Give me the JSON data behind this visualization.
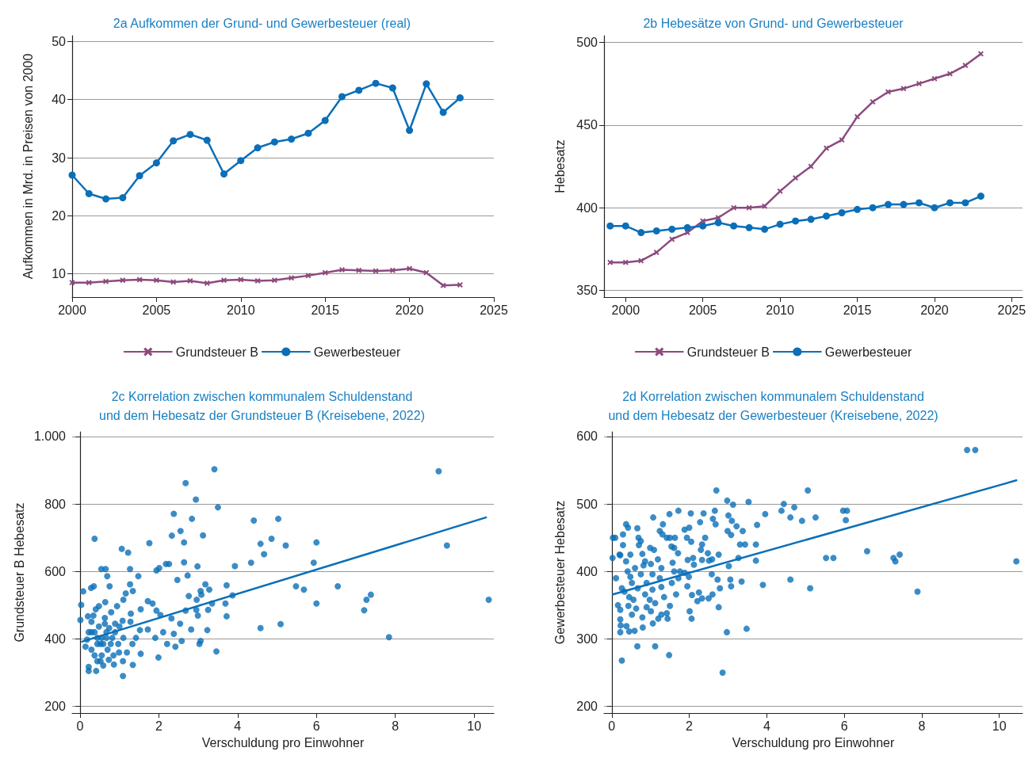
{
  "chart_data": [
    {
      "type": "line",
      "title": "2a Aufkommen der Grund- und Gewerbesteuer (real)",
      "ylabel": "Aufkommen in Mrd. in Preisen von 2000",
      "x": [
        2000,
        2001,
        2002,
        2003,
        2004,
        2005,
        2006,
        2007,
        2008,
        2009,
        2010,
        2011,
        2012,
        2013,
        2014,
        2015,
        2016,
        2017,
        2018,
        2019,
        2020,
        2021,
        2022,
        2023
      ],
      "xlim": [
        2000,
        2025
      ],
      "xticks": [
        2000,
        2005,
        2010,
        2015,
        2020,
        2025
      ],
      "ylim": [
        6,
        51
      ],
      "yticks": [
        10,
        20,
        30,
        40,
        50
      ],
      "grid": "y",
      "legend": "bottom",
      "series": [
        {
          "name": "Grundsteuer B",
          "color": "#8c4a7e",
          "marker": "cross",
          "values": [
            8.5,
            8.5,
            8.7,
            8.9,
            9.0,
            8.9,
            8.6,
            8.8,
            8.4,
            8.9,
            9.0,
            8.8,
            8.9,
            9.3,
            9.7,
            10.2,
            10.7,
            10.6,
            10.5,
            10.6,
            10.9,
            10.2,
            8.0,
            8.1
          ]
        },
        {
          "name": "Gewerbesteuer",
          "color": "#0a6fb8",
          "marker": "circle",
          "values": [
            27.0,
            23.8,
            22.9,
            23.1,
            26.9,
            29.1,
            32.9,
            34.0,
            33.0,
            27.2,
            29.5,
            31.7,
            32.7,
            33.2,
            34.2,
            36.4,
            40.5,
            41.6,
            42.8,
            42.0,
            34.7,
            42.7,
            37.8,
            40.3
          ]
        }
      ]
    },
    {
      "type": "line",
      "title": "2b Hebesätze von Grund- und Gewerbesteuer",
      "ylabel": "Hebesatz",
      "x": [
        1999,
        2000,
        2001,
        2002,
        2003,
        2004,
        2005,
        2006,
        2007,
        2008,
        2009,
        2010,
        2011,
        2012,
        2013,
        2014,
        2015,
        2016,
        2017,
        2018,
        2019,
        2020,
        2021,
        2022,
        2023
      ],
      "xlim": [
        1998.6,
        2025.7
      ],
      "xticks": [
        2000,
        2005,
        2010,
        2015,
        2020,
        2025
      ],
      "ylim": [
        346,
        504
      ],
      "yticks": [
        350,
        400,
        450,
        500
      ],
      "grid": "y",
      "legend": "bottom",
      "series": [
        {
          "name": "Grundsteuer B",
          "color": "#8c4a7e",
          "marker": "cross",
          "values": [
            367,
            367,
            368,
            373,
            381,
            385,
            392,
            394,
            400,
            400,
            401,
            410,
            418,
            425,
            436,
            441,
            455,
            464,
            470,
            472,
            475,
            478,
            481,
            486,
            493
          ]
        },
        {
          "name": "Gewerbesteuer",
          "color": "#0a6fb8",
          "marker": "circle",
          "values": [
            389,
            389,
            385,
            386,
            387,
            388,
            389,
            391,
            389,
            388,
            387,
            390,
            392,
            393,
            395,
            397,
            399,
            400,
            402,
            402,
            403,
            400,
            403,
            403,
            407
          ]
        }
      ]
    },
    {
      "type": "scatter",
      "title": "2c Korrelation zwischen kommunalem Schuldenstand\nund dem Hebesatz der Grundsteuer B (Kreisebene, 2022)",
      "xlabel": "Verschuldung pro Einwohner",
      "ylabel": "Grundsteuer B Hebesatz",
      "xlim": [
        -0.2,
        10.5
      ],
      "xticks": [
        0,
        2,
        4,
        6,
        8,
        10
      ],
      "ylim": [
        180,
        1014
      ],
      "yticks": [
        200,
        400,
        600,
        800,
        {
          "value": 1000,
          "label": "1.000"
        }
      ],
      "grid": "y",
      "marker": "circle",
      "series": [
        {
          "color": "#0a6fb8",
          "x": [
            3.41,
            2.68,
            2.94,
            3.5,
            2.38,
            2.84,
            4.41,
            5.03,
            9.1,
            9.31,
            10.37,
            7.84,
            7.21,
            7.27,
            7.38,
            6.54,
            6.0,
            6.0,
            5.93,
            5.48,
            5.68,
            5.22,
            4.86,
            4.58,
            4.67,
            4.34,
            4.58,
            5.09,
            3.93,
            3.87,
            3.69,
            3.72,
            3.72,
            3.46,
            3.28,
            3.18,
            3.08,
            3.06,
            3.35,
            3.25,
            3.23,
            3.12,
            2.98,
            2.73,
            2.64,
            2.55,
            2.33,
            2.64,
            1.76,
            1.06,
            1.22,
            0.37,
            0.54,
            0.65,
            1.27,
            1.94,
            2.01,
            2.18,
            2.26,
            1.48,
            0.69,
            0.75,
            0.35,
            0.28,
            0.08,
            0.03,
            0.01,
            0.2,
            0.34,
            1.09,
            0.41,
            0.22,
            0.22,
            1.99,
            3.03,
            3.06,
            2.82,
            2.47,
            2.76,
            2.96,
            2.99,
            2.95,
            2.68,
            2.54,
            2.58,
            2.42,
            2.21,
            2.38,
            2.32,
            2.04,
            1.94,
            1.84,
            1.72,
            1.54,
            1.34,
            1.27,
            1.16,
            1.1,
            0.94,
            1.29,
            1.28,
            1.52,
            1.72,
            1.91,
            2.11,
            1.42,
            1.33,
            1.19,
            1.34,
            1.54,
            1.09,
            0.86,
            0.59,
            0.52,
            0.37,
            0.29,
            0.14,
            0.18,
            0.29,
            0.48,
            0.63,
            0.74,
            0.89,
            1.0,
            1.08,
            0.79,
            0.64,
            0.48,
            0.4,
            0.29,
            0.44,
            0.59,
            0.67,
            0.82,
            0.97,
            0.7,
            0.85,
            0.55,
            0.44,
            0.73,
            0.99,
            1.1,
            0.37,
            0.22,
            0.67,
            0.89,
            0.63,
            0.52,
            0.78,
            0.55,
            0.44
          ],
          "values": [
            903,
            862,
            813,
            790,
            771,
            756,
            751,
            756,
            897,
            677,
            516,
            405,
            485,
            516,
            531,
            556,
            505,
            686,
            626,
            556,
            546,
            677,
            697,
            682,
            651,
            626,
            432,
            444,
            616,
            529,
            505,
            559,
            467,
            363,
            546,
            562,
            531,
            542,
            505,
            486,
            426,
            707,
            615,
            588,
            686,
            720,
            706,
            627,
            684,
            667,
            656,
            697,
            607,
            607,
            607,
            603,
            610,
            622,
            622,
            586,
            586,
            556,
            556,
            551,
            541,
            501,
            456,
            467,
            469,
            290,
            305,
            305,
            317,
            345,
            385,
            394,
            428,
            575,
            527,
            516,
            469,
            486,
            484,
            445,
            394,
            377,
            385,
            415,
            461,
            471,
            484,
            505,
            512,
            488,
            542,
            562,
            535,
            516,
            497,
            475,
            451,
            426,
            428,
            403,
            420,
            403,
            385,
            360,
            323,
            356,
            334,
            324,
            321,
            334,
            351,
            368,
            377,
            398,
            420,
            437,
            445,
            432,
            445,
            437,
            454,
            479,
            509,
            497,
            488,
            451,
            385,
            385,
            403,
            403,
            385,
            368,
            351,
            351,
            334,
            338,
            360,
            403,
            420,
            420,
            420,
            420,
            462,
            385,
            385,
            403,
            403
          ]
        },
        {
          "type": "line",
          "color": "#0a6fb8",
          "marker": "none",
          "x": [
            0.05,
            10.3
          ],
          "values": [
            392,
            760
          ]
        }
      ]
    },
    {
      "type": "scatter",
      "title": "2d Korrelation zwischen kommunalem Schuldenstand\nund dem Hebesatz der Gewerbesteuer (Kreisebene, 2022)",
      "xlabel": "Verschuldung pro Einwohner",
      "ylabel": "Gewerbesteuer Hebesatz",
      "xlim": [
        -0.2,
        10.6
      ],
      "xticks": [
        0,
        2,
        4,
        6,
        8,
        10
      ],
      "ylim": [
        190,
        607
      ],
      "yticks": [
        200,
        300,
        400,
        500,
        600
      ],
      "grid": "y",
      "marker": "circle",
      "series": [
        {
          "color": "#0a6fb8",
          "x": [
            9.17,
            9.38,
            10.44,
            7.89,
            7.43,
            7.27,
            7.32,
            6.59,
            5.97,
            6.07,
            6.04,
            5.53,
            5.72,
            5.12,
            5.06,
            5.26,
            4.91,
            4.71,
            4.61,
            4.44,
            4.38,
            4.61,
            3.96,
            3.75,
            3.72,
            3.72,
            3.9,
            3.53,
            3.44,
            3.31,
            3.38,
            3.22,
            3.13,
            3.1,
            3.08,
            3.01,
            2.98,
            2.99,
            3.27,
            3.35,
            3.48,
            2.97,
            2.86,
            2.76,
            3.06,
            3.02,
            3.08,
            2.79,
            2.73,
            2.68,
            2.7,
            2.66,
            2.41,
            2.33,
            2.61,
            2.37,
            2.28,
            2.3,
            2.33,
            2.48,
            2.51,
            2.59,
            2.76,
            2.58,
            2.6,
            2.5,
            2.33,
            2.25,
            2.21,
            2.06,
            2.01,
            2.07,
            1.95,
            1.99,
            2.12,
            2.1,
            1.96,
            2.05,
            1.94,
            1.88,
            2.0,
            2.04,
            1.72,
            1.63,
            1.5,
            1.42,
            1.49,
            1.32,
            1.24,
            1.31,
            1.07,
            1.71,
            1.61,
            1.54,
            1.57,
            1.61,
            1.76,
            1.88,
            1.72,
            1.55,
            1.66,
            1.5,
            1.44,
            1.42,
            1.48,
            1.12,
            0.66,
            0.26,
            0.22,
            0.45,
            0.59,
            0.8,
            1.06,
            1.2,
            1.28,
            1.35,
            1.28,
            1.24,
            1.28,
            1.19,
            1.09,
            0.99,
            1.01,
            0.86,
            0.79,
            0.7,
            0.69,
            0.75,
            0.66,
            0.42,
            0.37,
            0.29,
            0.48,
            0.37,
            0.22,
            0.29,
            0.2,
            0.02,
            0.03,
            0.09,
            0.11,
            0.16,
            0.22,
            0.22,
            0.23,
            0.38,
            0.26,
            0.33,
            0.45,
            0.56,
            0.63,
            0.52,
            0.43,
            0.67,
            0.86,
            0.98,
            0.9,
            0.79,
            1.01,
            1.12,
            1.05,
            0.9,
            0.75,
            0.6,
            0.48,
            0.52,
            0.41,
            0.82,
            1.05
          ],
          "values": [
            580,
            580,
            415,
            370,
            425,
            420,
            415,
            430,
            490,
            490,
            476,
            420,
            420,
            375,
            520,
            480,
            475,
            495,
            480,
            500,
            490,
            388,
            485,
            469,
            440,
            416,
            380,
            503,
            440,
            440,
            460,
            467,
            499,
            475,
            454,
            483,
            505,
            460,
            420,
            385,
            315,
            310,
            250,
            347,
            388,
            408,
            378,
            375,
            388,
            470,
            520,
            490,
            450,
            440,
            478,
            486,
            473,
            432,
            417,
            427,
            416,
            418,
            425,
            396,
            366,
            360,
            360,
            369,
            356,
            330,
            341,
            365,
            378,
            392,
            410,
            420,
            417,
            444,
            450,
            462,
            465,
            486,
            490,
            450,
            450,
            450,
            485,
            470,
            460,
            455,
            480,
            427,
            435,
            437,
            413,
            400,
            400,
            398,
            390,
            383,
            366,
            349,
            330,
            338,
            276,
            289,
            289,
            268,
            310,
            311,
            312,
            317,
            323,
            330,
            336,
            362,
            377,
            390,
            405,
            418,
            432,
            435,
            411,
            415,
            426,
            439,
            450,
            445,
            464,
            465,
            470,
            439,
            425,
            415,
            424,
            455,
            425,
            420,
            450,
            450,
            390,
            350,
            343,
            329,
            320,
            319,
            375,
            370,
            362,
            358,
            345,
            336,
            349,
            375,
            366,
            358,
            347,
            332,
            341,
            353,
            373,
            383,
            396,
            405,
            392,
            383,
            400,
            409,
            396
          ]
        },
        {
          "type": "line",
          "color": "#0a6fb8",
          "marker": "none",
          "x": [
            0.03,
            10.44
          ],
          "values": [
            366,
            535
          ]
        }
      ]
    }
  ]
}
